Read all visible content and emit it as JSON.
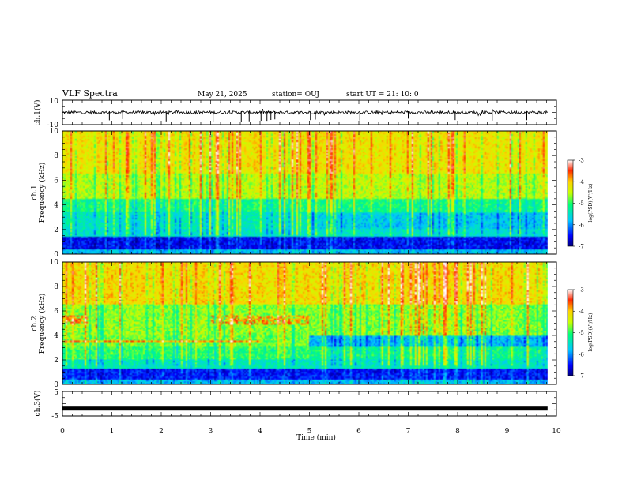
{
  "header": {
    "title": "VLF Spectra",
    "date": "May 21, 2025",
    "station": "station= OUJ",
    "start_ut": "start  UT  =   21: 10: 0"
  },
  "chart_data": [
    {
      "type": "line",
      "name": "ch1-waveform",
      "ylabel": "ch.1(V)",
      "ylim": [
        -10,
        10
      ],
      "yticks": [
        10,
        -10
      ],
      "baseline": 0,
      "spike_minutes": [
        0.95,
        1.22,
        2.1,
        3.05,
        3.62,
        3.78,
        4.02,
        4.14,
        4.22,
        4.3,
        5.02,
        5.12,
        6.02,
        7.0,
        7.95,
        8.7,
        9.4
      ]
    },
    {
      "type": "heatmap",
      "name": "ch1-spectrogram",
      "ylabel": "ch.1\nFrequency (kHz)",
      "ylim": [
        0,
        10
      ],
      "yticks": [
        0,
        2,
        4,
        6,
        8,
        10
      ],
      "colorbar": {
        "min": -7,
        "max": -3,
        "ticks": [
          "-3",
          "-4",
          "-5",
          "-6",
          "-7"
        ],
        "label": "log(PSD)(V²/Hz)"
      }
    },
    {
      "type": "heatmap",
      "name": "ch2-spectrogram",
      "ylabel": "ch.2\nFrequency (kHz)",
      "ylim": [
        0,
        10
      ],
      "yticks": [
        0,
        2,
        4,
        6,
        8,
        10
      ],
      "colorbar": {
        "min": -7,
        "max": -3,
        "ticks": [
          "-3",
          "-4",
          "-5",
          "-6",
          "-7"
        ],
        "label": "log(PSD)(V²/Hz)"
      }
    },
    {
      "type": "line",
      "name": "ch3-waveform",
      "ylabel": "ch.3(V)",
      "ylim": [
        -5,
        5
      ],
      "yticks": [
        5,
        -5
      ],
      "constant_value": -2
    }
  ],
  "x_axis": {
    "label": "Time (min)",
    "range": [
      0,
      10
    ],
    "ticks": [
      0,
      1,
      2,
      3,
      4,
      5,
      6,
      7,
      8,
      9,
      10
    ],
    "data_end": 9.82
  },
  "colors": {
    "scale": [
      "#00007a",
      "#0000ff",
      "#00c8ff",
      "#00ff7a",
      "#c8ff00",
      "#ffd200",
      "#ff2800",
      "#ffffff"
    ]
  }
}
